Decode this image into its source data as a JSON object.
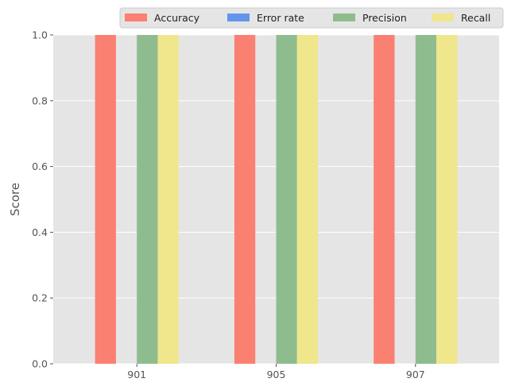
{
  "chart_data": {
    "type": "bar",
    "title": "",
    "xlabel": "",
    "ylabel": "Score",
    "categories": [
      "901",
      "905",
      "907"
    ],
    "ylim": [
      0,
      1.0
    ],
    "yticks": [
      "0.0",
      "0.2",
      "0.4",
      "0.6",
      "0.8",
      "1.0"
    ],
    "grid": true,
    "legend_position": "top-right, above plot",
    "series": [
      {
        "name": "Accuracy",
        "values": [
          1.0,
          1.0,
          1.0
        ],
        "color": "#fa8072"
      },
      {
        "name": "Error rate",
        "values": [
          0.0,
          0.0,
          0.0
        ],
        "color": "#6495ed"
      },
      {
        "name": "Precision",
        "values": [
          1.0,
          1.0,
          1.0
        ],
        "color": "#8fbc8f"
      },
      {
        "name": "Recall",
        "values": [
          1.0,
          1.0,
          1.0
        ],
        "color": "#f0e68c"
      }
    ]
  }
}
